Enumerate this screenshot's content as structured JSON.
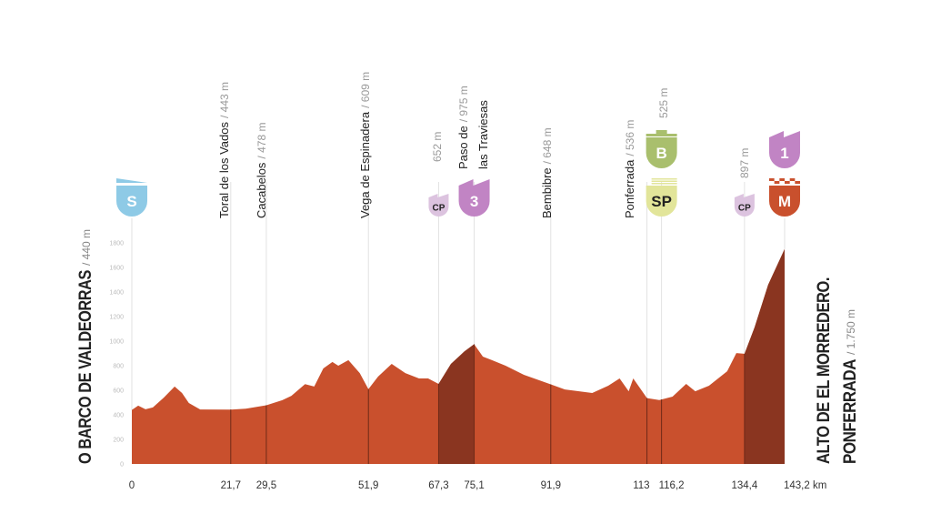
{
  "chart_data": {
    "type": "area",
    "xlabel": "",
    "ylabel": "",
    "xunit": "km",
    "ylim": [
      0,
      1800
    ],
    "xlim": [
      0,
      143.2
    ],
    "y_ticks": [
      "0",
      "200",
      "400",
      "600",
      "800",
      "1000",
      "1200",
      "1400",
      "1600",
      "1800"
    ],
    "x_ticks": [
      {
        "value": 0,
        "label": "0"
      },
      {
        "value": 21.7,
        "label": "21,7"
      },
      {
        "value": 29.5,
        "label": "29,5"
      },
      {
        "value": 51.9,
        "label": "51,9"
      },
      {
        "value": 67.3,
        "label": "67,3"
      },
      {
        "value": 75.1,
        "label": "75,1"
      },
      {
        "value": 91.9,
        "label": "91,9"
      },
      {
        "value": 113,
        "label": "113"
      },
      {
        "value": 116.2,
        "label": "116,2"
      },
      {
        "value": 134.4,
        "label": "134,4"
      },
      {
        "value": 143.2,
        "label": "143,2 km"
      }
    ],
    "profile": [
      [
        0,
        440
      ],
      [
        1.4,
        475
      ],
      [
        3,
        445
      ],
      [
        4.6,
        460
      ],
      [
        7,
        540
      ],
      [
        9.4,
        630
      ],
      [
        11,
        578
      ],
      [
        12.5,
        496
      ],
      [
        15,
        444
      ],
      [
        21.7,
        443
      ],
      [
        25,
        450
      ],
      [
        29.5,
        478
      ],
      [
        33,
        519
      ],
      [
        35,
        555
      ],
      [
        38,
        650
      ],
      [
        40,
        630
      ],
      [
        42,
        778
      ],
      [
        44,
        830
      ],
      [
        45.3,
        800
      ],
      [
        47.5,
        845
      ],
      [
        50,
        740
      ],
      [
        51.9,
        609
      ],
      [
        54,
        711
      ],
      [
        57,
        815
      ],
      [
        60,
        740
      ],
      [
        63,
        696
      ],
      [
        65,
        696
      ],
      [
        67.3,
        652
      ],
      [
        70,
        815
      ],
      [
        73,
        918
      ],
      [
        75.1,
        975
      ],
      [
        77,
        874
      ],
      [
        79,
        845
      ],
      [
        82,
        800
      ],
      [
        86,
        726
      ],
      [
        91.9,
        648
      ],
      [
        95,
        607
      ],
      [
        101,
        578
      ],
      [
        104.5,
        637
      ],
      [
        107,
        696
      ],
      [
        109,
        592
      ],
      [
        110,
        696
      ],
      [
        113,
        536
      ],
      [
        115.7,
        520
      ],
      [
        116.2,
        525
      ],
      [
        118.6,
        548
      ],
      [
        121.6,
        652
      ],
      [
        123.6,
        592
      ],
      [
        126.6,
        637
      ],
      [
        130.6,
        755
      ],
      [
        132.6,
        903
      ],
      [
        134.4,
        897
      ],
      [
        136.6,
        1111
      ],
      [
        139.6,
        1459
      ],
      [
        143.2,
        1750
      ]
    ],
    "climb_segments": [
      [
        67.3,
        75.1
      ],
      [
        134.4,
        143.2
      ]
    ],
    "colors": {
      "profile": "#c9502d",
      "climb": "#8a3520",
      "start": "#8ecae6",
      "cp": "#dcc3df",
      "cat": "#c184c4",
      "bonus": "#a9bf6d",
      "sprint": "#e2e59a",
      "finish": "#c9502d"
    },
    "start": {
      "name": "O BARCO DE VALDEORRAS",
      "altitude": "/ 440 m"
    },
    "finish": {
      "name": "ALTO DE EL MORREDERO.",
      "name2": "PONFERRADA",
      "altitude": "/ 1.750 m"
    },
    "waypoints": [
      {
        "km": 21.7,
        "name": "Toral de los Vados",
        "altitude": "/ 443 m"
      },
      {
        "km": 29.5,
        "name": "Cacabelos",
        "altitude": "/ 478 m"
      },
      {
        "km": 51.9,
        "name": "Vega de Espinadera",
        "altitude": "/ 609 m"
      },
      {
        "km": 67.3,
        "name": "",
        "altitude": "652 m"
      },
      {
        "km": 75.1,
        "name": "Paso de",
        "name2": "las Traviesas",
        "altitude": "/ 975 m"
      },
      {
        "km": 91.9,
        "name": "Bembibre",
        "altitude": "/ 648 m"
      },
      {
        "km": 113,
        "name": "Ponferrada",
        "altitude": "/ 536 m"
      },
      {
        "km": 116.2,
        "name": "",
        "altitude": "525 m"
      },
      {
        "km": 134.4,
        "name": "",
        "altitude": "897 m"
      }
    ],
    "badges": [
      {
        "km": 0,
        "label": "S",
        "type": "start",
        "row": "low"
      },
      {
        "km": 67.3,
        "label": "CP",
        "type": "cp",
        "row": "small"
      },
      {
        "km": 75.1,
        "label": "3",
        "type": "cat",
        "row": "low"
      },
      {
        "km": 116.2,
        "label": "B",
        "type": "bonus",
        "row": "high"
      },
      {
        "km": 116.2,
        "label": "SP",
        "type": "sprint",
        "row": "low"
      },
      {
        "km": 134.4,
        "label": "CP",
        "type": "cp",
        "row": "small"
      },
      {
        "km": 143.2,
        "label": "1",
        "type": "cat",
        "row": "high"
      },
      {
        "km": 143.2,
        "label": "M",
        "type": "finish",
        "row": "low"
      }
    ]
  }
}
